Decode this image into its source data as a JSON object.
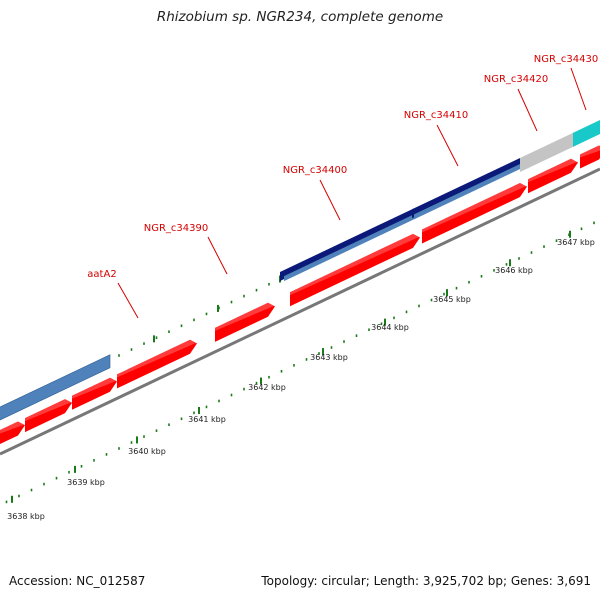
{
  "title": "Rhizobium sp. NGR234, complete genome",
  "footer": {
    "accession": "Accession: NC_012587",
    "summary": "Topology: circular; Length: 3,925,702 bp; Genes: 3,691"
  },
  "colors": {
    "cds": "#ff0000",
    "cds_top": "#ff6b6b",
    "steelblue": "#4f82ba",
    "navy": "#0b1a78",
    "gray": "#c4c4c4",
    "cyan": "#19c9c9",
    "label": "#d40000",
    "tick": "#1a7a1a",
    "backbone": "#777777"
  },
  "gene_labels": [
    "aatA2",
    "NGR_c34390",
    "NGR_c34400",
    "NGR_c34410",
    "NGR_c34420",
    "NGR_c34430"
  ],
  "kbp_labels": [
    "3638 kbp",
    "3639 kbp",
    "3640 kbp",
    "3641 kbp",
    "3642 kbp",
    "3643 kbp",
    "3644 kbp",
    "3645 kbp",
    "3646 kbp",
    "3647 kbp"
  ]
}
